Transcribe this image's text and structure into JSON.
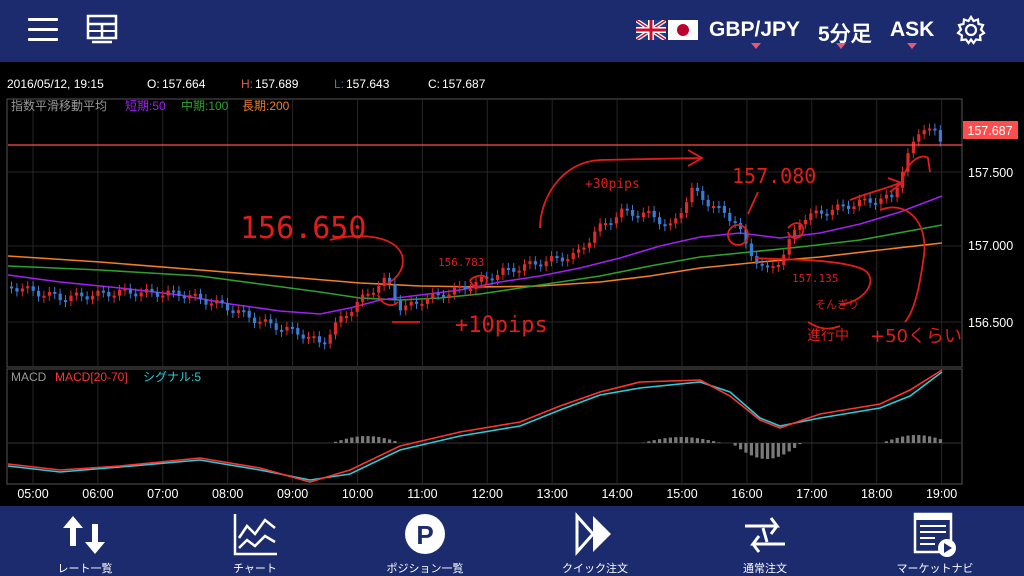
{
  "header": {
    "pair": "GBP/JPY",
    "timeframe": "5分足",
    "side": "ASK"
  },
  "info": {
    "datetime": "2016/05/12, 19:15",
    "open_label": "O:",
    "open": "157.664",
    "high_label": "H:",
    "high": "157.689",
    "low_label": "L:",
    "low": "157.643",
    "close_label": "C:",
    "close": "157.687"
  },
  "main_chart": {
    "indicator": "指数平滑移動平均",
    "short_label": "短期:50",
    "mid_label": "中期:100",
    "long_label": "長期:200",
    "price_ticks": [
      "157.500",
      "157.000",
      "156.500"
    ],
    "current_price": "157.687"
  },
  "macd_panel": {
    "label": "MACD",
    "macd_label": "MACD[20-70]",
    "signal_label": "シグナル:5"
  },
  "time_axis": [
    "05:00",
    "06:00",
    "07:00",
    "08:00",
    "09:00",
    "10:00",
    "11:00",
    "12:00",
    "13:00",
    "14:00",
    "15:00",
    "16:00",
    "17:00",
    "18:00",
    "19:00"
  ],
  "annotations": {
    "a1": "156.650",
    "a2": "156.783",
    "a3": "+30pips",
    "a4": "157.080",
    "a5": "157.135",
    "a6": "+10pips",
    "a7": "そんぎり",
    "a8": "進行中",
    "a9": "+50くらい"
  },
  "nav": [
    {
      "label": "レート一覧",
      "icon": "rate-list-icon"
    },
    {
      "label": "チャート",
      "icon": "chart-icon"
    },
    {
      "label": "ポジション一覧",
      "icon": "position-icon"
    },
    {
      "label": "クイック注文",
      "icon": "quick-order-icon"
    },
    {
      "label": "通常注文",
      "icon": "normal-order-icon"
    },
    {
      "label": "マーケットナビ",
      "icon": "market-navi-icon"
    }
  ],
  "colors": {
    "header_bg": "#1c2a6e",
    "ema_short": "#a020f0",
    "ema_mid": "#2ea02e",
    "ema_long": "#f07f27",
    "price_line": "#ff4d4d",
    "candle_up": "#e02a2a",
    "candle_down": "#3a7bd5",
    "annotation": "#e01c1c",
    "macd": "#ff3333",
    "signal": "#2ec9d6"
  }
}
